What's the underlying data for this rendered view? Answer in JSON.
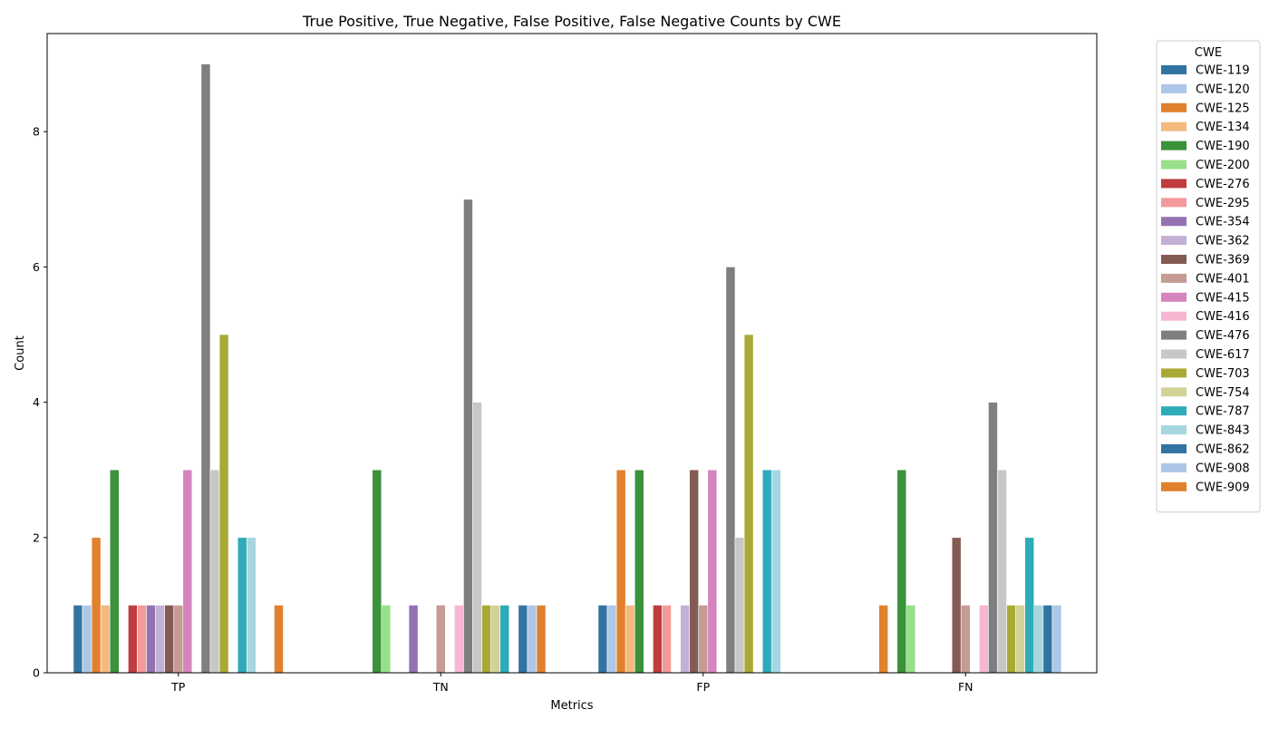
{
  "chart_data": {
    "type": "bar",
    "title": "True Positive, True Negative, False Positive, False Negative Counts by CWE",
    "xlabel": "Metrics",
    "ylabel": "Count",
    "ylim": [
      0,
      9.45
    ],
    "yticks": [
      0,
      2,
      4,
      6,
      8
    ],
    "categories": [
      "TP",
      "TN",
      "FP",
      "FN"
    ],
    "legend": {
      "title": "CWE",
      "placement": "outside-top-right"
    },
    "grid": false,
    "series": [
      {
        "name": "CWE-119",
        "color": "#3274a1",
        "values": [
          1,
          0,
          1,
          0
        ]
      },
      {
        "name": "CWE-120",
        "color": "#aec7e8",
        "values": [
          1,
          0,
          1,
          0
        ]
      },
      {
        "name": "CWE-125",
        "color": "#e1812c",
        "values": [
          2,
          0,
          3,
          1
        ]
      },
      {
        "name": "CWE-134",
        "color": "#f3b97f",
        "values": [
          1,
          0,
          1,
          0
        ]
      },
      {
        "name": "CWE-190",
        "color": "#3a923a",
        "values": [
          3,
          3,
          3,
          3
        ]
      },
      {
        "name": "CWE-200",
        "color": "#98df8a",
        "values": [
          0,
          1,
          0,
          1
        ]
      },
      {
        "name": "CWE-276",
        "color": "#c03d3e",
        "values": [
          1,
          0,
          1,
          0
        ]
      },
      {
        "name": "CWE-295",
        "color": "#f4999a",
        "values": [
          1,
          0,
          1,
          0
        ]
      },
      {
        "name": "CWE-354",
        "color": "#9372b2",
        "values": [
          1,
          1,
          0,
          0
        ]
      },
      {
        "name": "CWE-362",
        "color": "#c5b0d5",
        "values": [
          1,
          0,
          1,
          0
        ]
      },
      {
        "name": "CWE-369",
        "color": "#845b53",
        "values": [
          1,
          0,
          3,
          2
        ]
      },
      {
        "name": "CWE-401",
        "color": "#c49c94",
        "values": [
          1,
          1,
          1,
          1
        ]
      },
      {
        "name": "CWE-415",
        "color": "#d684bd",
        "values": [
          3,
          0,
          3,
          0
        ]
      },
      {
        "name": "CWE-416",
        "color": "#f7b6d2",
        "values": [
          0,
          1,
          0,
          1
        ]
      },
      {
        "name": "CWE-476",
        "color": "#7f7f7f",
        "values": [
          9,
          7,
          6,
          4
        ]
      },
      {
        "name": "CWE-617",
        "color": "#c7c7c7",
        "values": [
          3,
          4,
          2,
          3
        ]
      },
      {
        "name": "CWE-703",
        "color": "#a9aa35",
        "values": [
          5,
          1,
          5,
          1
        ]
      },
      {
        "name": "CWE-754",
        "color": "#d2d296",
        "values": [
          0,
          1,
          0,
          1
        ]
      },
      {
        "name": "CWE-787",
        "color": "#2eabb8",
        "values": [
          2,
          1,
          3,
          2
        ]
      },
      {
        "name": "CWE-843",
        "color": "#a6d6e0",
        "values": [
          2,
          0,
          3,
          1
        ]
      },
      {
        "name": "CWE-862",
        "color": "#3274a1",
        "values": [
          0,
          1,
          0,
          1
        ]
      },
      {
        "name": "CWE-908",
        "color": "#aec7e8",
        "values": [
          0,
          1,
          0,
          1
        ]
      },
      {
        "name": "CWE-909",
        "color": "#e1812c",
        "values": [
          1,
          1,
          0,
          0
        ]
      }
    ]
  }
}
